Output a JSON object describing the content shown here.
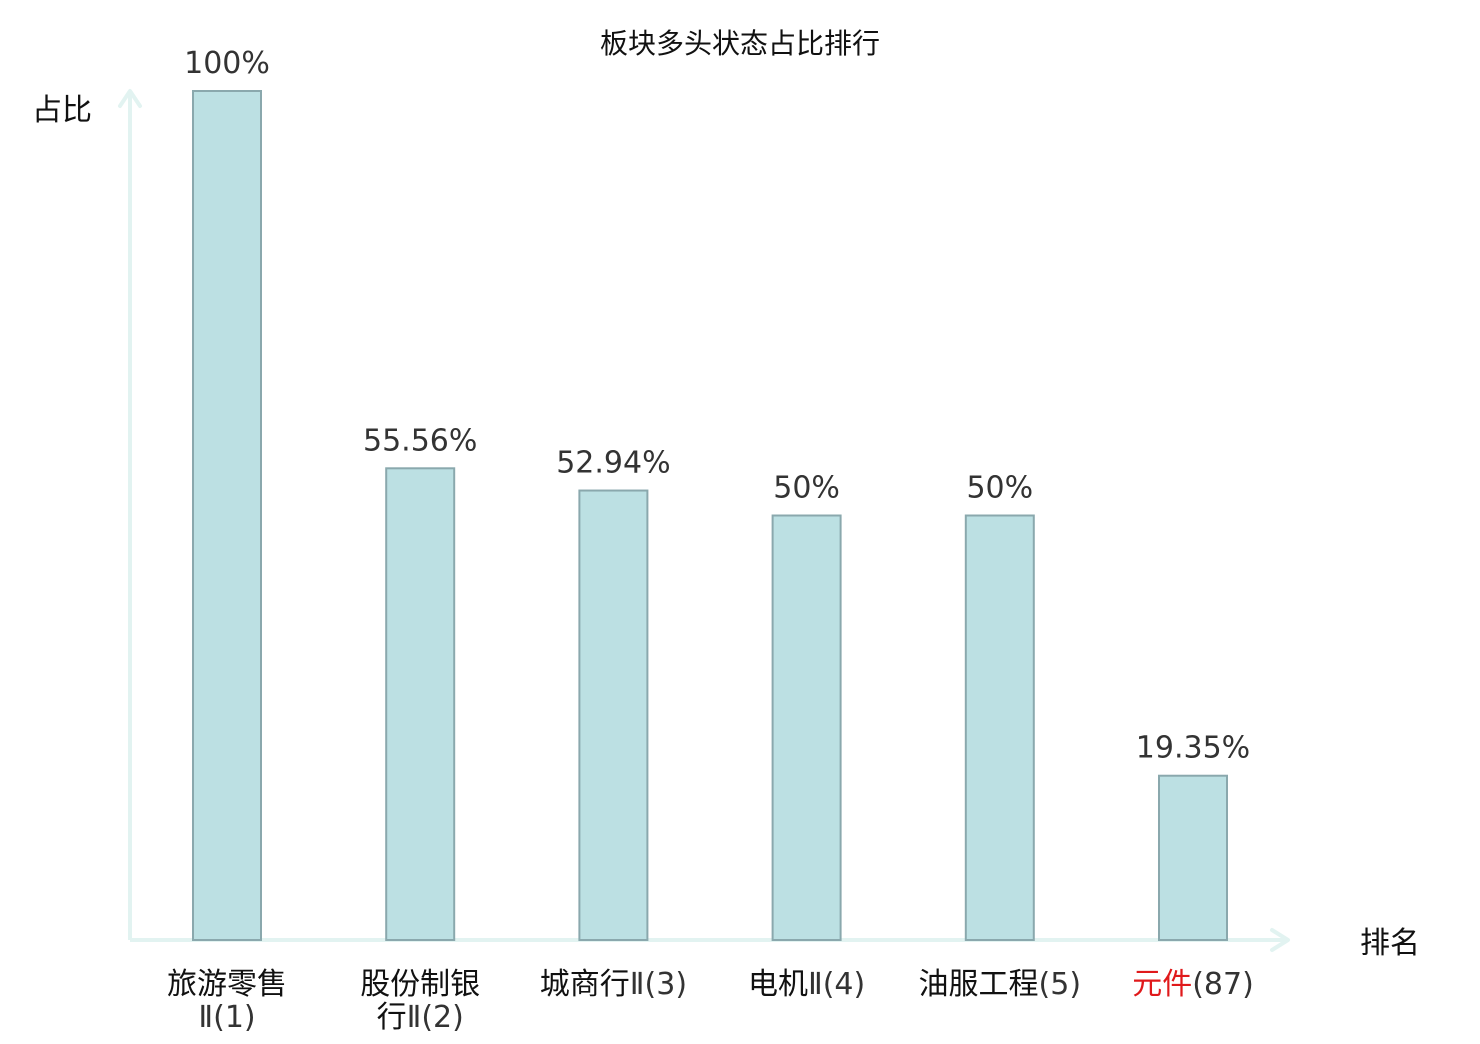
{
  "chart_data": {
    "type": "bar",
    "title": "板块多头状态占比排行",
    "xlabel": "排名",
    "ylabel": "占比",
    "ylim": [
      0,
      100
    ],
    "grid": false,
    "categories": [
      "旅游零售Ⅱ(1)",
      "股份制银行Ⅱ(2)",
      "城商行Ⅱ(3)",
      "电机Ⅱ(4)",
      "油服工程(5)",
      "元件(87)"
    ],
    "category_lines": [
      [
        {
          "name": "旅游零售",
          "rank": ""
        },
        {
          "name": "",
          "rank": "Ⅱ(1)"
        }
      ],
      [
        {
          "name": "股份制银",
          "rank": ""
        },
        {
          "name": "行",
          "rank": "Ⅱ(2)"
        }
      ],
      [
        {
          "name": "城商行",
          "rank": "Ⅱ(3)"
        }
      ],
      [
        {
          "name": "电机",
          "rank": "Ⅱ(4)"
        }
      ],
      [
        {
          "name": "油服工程",
          "rank": "(5)"
        }
      ],
      [
        {
          "name": "元件",
          "rank": "(87)"
        }
      ]
    ],
    "highlight_index": 5,
    "values": [
      100,
      55.56,
      52.94,
      50,
      50,
      19.35
    ],
    "value_labels": [
      "100%",
      "55.56%",
      "52.94%",
      "50%",
      "50%",
      "19.35%"
    ],
    "colors": {
      "bar_fill": "#bce0e3",
      "bar_stroke": "#8aa8ad",
      "axis": "#e2f3f1",
      "highlight_text": "#e0191b",
      "text": "#111111",
      "value_text": "#333333"
    }
  }
}
